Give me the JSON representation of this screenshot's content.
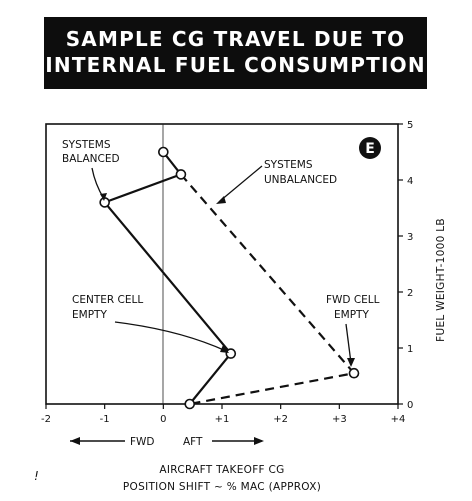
{
  "title_lines": [
    "SAMPLE CG TRAVEL DUE TO",
    "INTERNAL FUEL CONSUMPTION"
  ],
  "figure_tag": "E",
  "chart_data": {
    "type": "line",
    "title": "SAMPLE CG TRAVEL DUE TO INTERNAL FUEL CONSUMPTION",
    "xlabel_lines": [
      "AIRCRAFT TAKEOFF CG",
      "POSITION SHIFT ~ % MAC (APPROX)"
    ],
    "ylabel": "FUEL WEIGHT-1000 LB",
    "xlim": [
      -2,
      4
    ],
    "ylim": [
      0,
      5
    ],
    "x_ticks": [
      -2,
      -1,
      0,
      1,
      2,
      3,
      4
    ],
    "x_tick_labels": [
      "-2",
      "-1",
      "0",
      "+1",
      "+2",
      "+3",
      "+4"
    ],
    "y_ticks": [
      0,
      1,
      2,
      3,
      4,
      5
    ],
    "y_tick_labels": [
      "0",
      "1",
      "2",
      "3",
      "4",
      "5"
    ],
    "grid": false,
    "series": [
      {
        "name": "SYSTEMS BALANCED",
        "style": "solid",
        "points": [
          [
            0.0,
            4.5
          ],
          [
            0.3,
            4.1
          ],
          [
            -1.0,
            3.6
          ],
          [
            1.15,
            0.9
          ],
          [
            0.45,
            0.0
          ]
        ]
      },
      {
        "name": "SYSTEMS UNBALANCED",
        "style": "dashed",
        "points": [
          [
            0.3,
            4.1
          ],
          [
            3.25,
            0.55
          ],
          [
            0.45,
            0.0
          ]
        ]
      }
    ],
    "annotations": [
      {
        "lines": [
          "SYSTEMS",
          "BALANCED"
        ]
      },
      {
        "lines": [
          "SYSTEMS",
          "UNBALANCED"
        ]
      },
      {
        "lines": [
          "CENTER CELL",
          "EMPTY"
        ]
      },
      {
        "lines": [
          "FWD CELL",
          "EMPTY"
        ]
      }
    ],
    "direction_labels": {
      "fwd": "FWD",
      "aft": "AFT"
    },
    "footnote_mark": "!"
  }
}
